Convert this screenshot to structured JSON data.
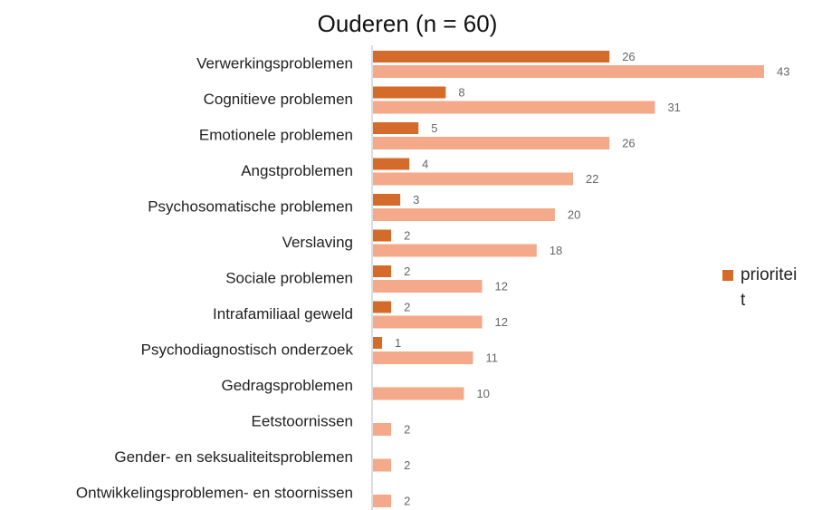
{
  "chart_data": {
    "type": "bar",
    "orientation": "horizontal",
    "title": "Ouderen  (n = 60)",
    "categories": [
      "Verwerkingsproblemen",
      "Cognitieve problemen",
      "Emotionele problemen",
      "Angstproblemen",
      "Psychosomatische problemen",
      "Verslaving",
      "Sociale problemen",
      "Intrafamiliaal geweld",
      "Psychodiagnostisch onderzoek",
      "Gedragsproblemen",
      "Eetstoornissen",
      "Gender- en seksualiteitsproblemen",
      "Ontwikkelingsproblemen- en stoornissen"
    ],
    "series": [
      {
        "name": "prioriteit",
        "color": "#d46b2b",
        "values": [
          26,
          8,
          5,
          4,
          3,
          2,
          2,
          2,
          1,
          null,
          null,
          null,
          null
        ]
      },
      {
        "color": "#f3a98a",
        "values": [
          43,
          31,
          26,
          22,
          20,
          18,
          12,
          12,
          11,
          10,
          2,
          2,
          2
        ]
      }
    ]
  }
}
